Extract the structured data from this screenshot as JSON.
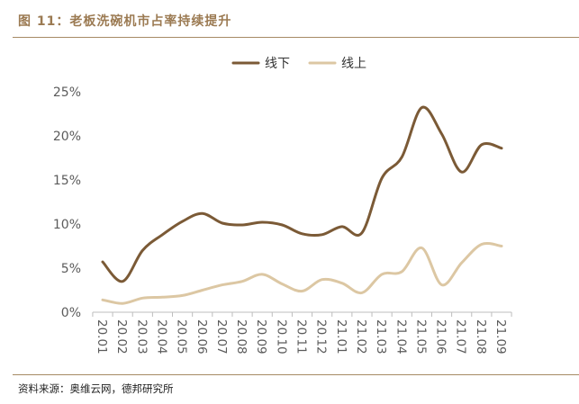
{
  "figure": {
    "title": "图 11：老板洗碗机市占率持续提升",
    "source": "资料来源：奥维云网，德邦研究所"
  },
  "colors": {
    "accent": "#9b7a52",
    "rule": "#a68a64",
    "series_offline": "#7b5a36",
    "series_online": "#dcc7a3"
  },
  "chart_data": {
    "type": "line",
    "smooth": true,
    "categories": [
      "20.01",
      "20.02",
      "20.03",
      "20.04",
      "20.05",
      "20.06",
      "20.07",
      "20.08",
      "20.09",
      "20.10",
      "20.11",
      "20.12",
      "21.01",
      "21.02",
      "21.03",
      "21.04",
      "21.05",
      "21.06",
      "21.07",
      "21.08",
      "21.09"
    ],
    "series": [
      {
        "name": "线下",
        "color": "#7b5a36",
        "values": [
          5.7,
          3.5,
          7.0,
          8.8,
          10.3,
          11.2,
          10.1,
          9.9,
          10.2,
          9.9,
          8.9,
          8.8,
          9.7,
          9.0,
          15.2,
          17.6,
          23.2,
          20.2,
          15.9,
          19.0,
          18.6
        ]
      },
      {
        "name": "线上",
        "color": "#dcc7a3",
        "values": [
          1.4,
          1.0,
          1.6,
          1.7,
          1.9,
          2.5,
          3.1,
          3.5,
          4.3,
          3.2,
          2.4,
          3.7,
          3.3,
          2.2,
          4.3,
          4.6,
          7.3,
          3.1,
          5.6,
          7.7,
          7.5
        ]
      }
    ],
    "y_ticks": [
      "0%",
      "5%",
      "10%",
      "15%",
      "20%",
      "25%"
    ],
    "ylim": [
      0,
      25
    ],
    "y_unit": "%",
    "grid": false,
    "legend_position": "top-center",
    "x_label_rotation": "vertical"
  }
}
